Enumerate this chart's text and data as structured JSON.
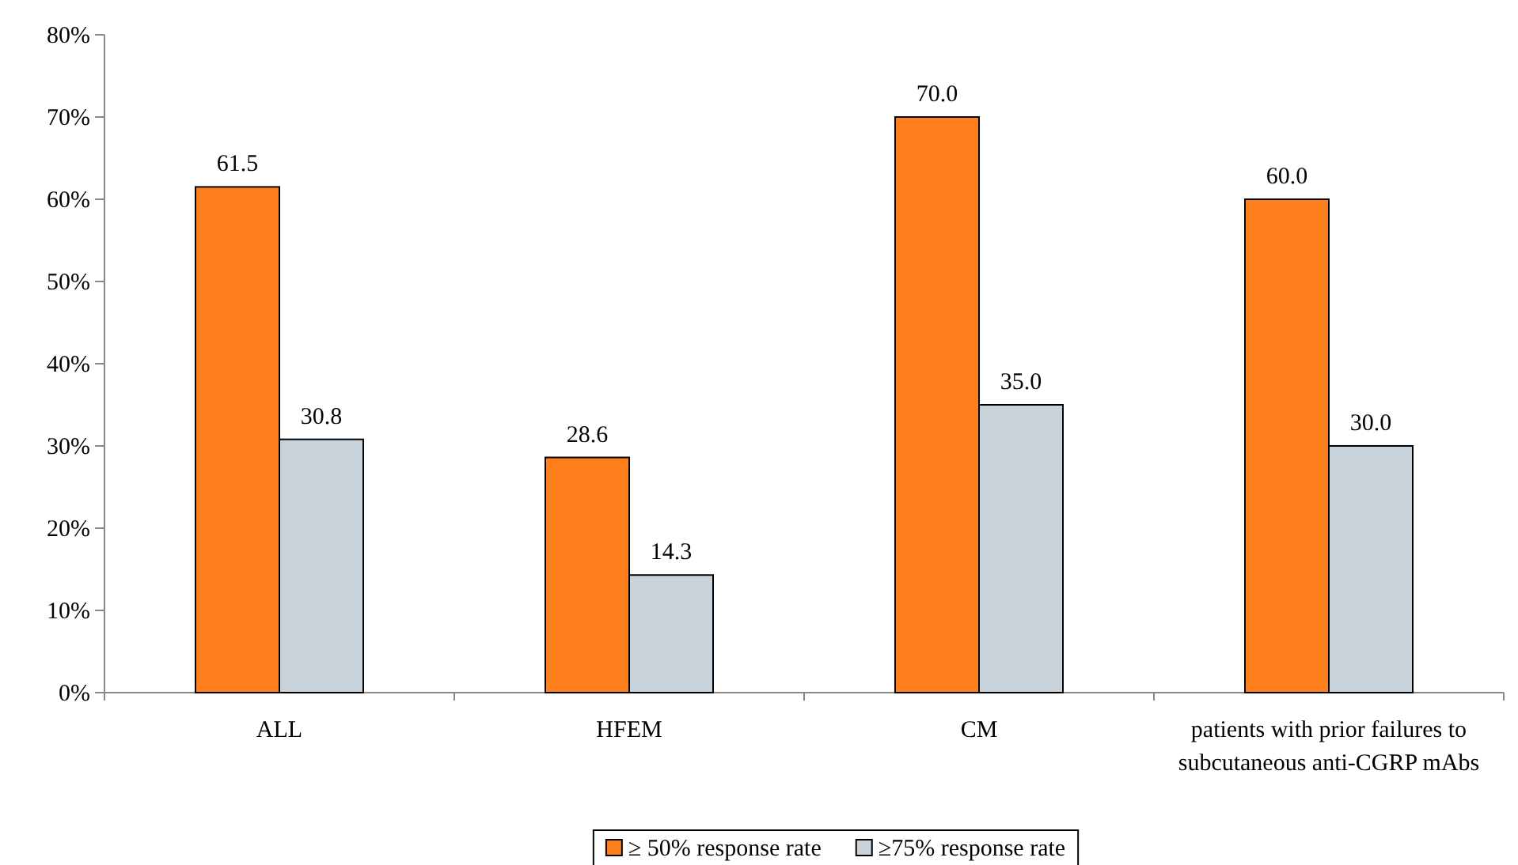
{
  "chart_data": {
    "type": "bar",
    "categories": [
      "ALL",
      "HFEM",
      "CM",
      "patients with prior failures to subcutaneous anti-CGRP mAbs"
    ],
    "series": [
      {
        "name": "≥ 50% response rate",
        "color": "#ff7f1e",
        "values": [
          61.5,
          28.6,
          70.0,
          60.0
        ],
        "value_labels": [
          "61.5",
          "28.6",
          "70.0",
          "60.0"
        ]
      },
      {
        "name": "≥75% response rate",
        "color": "#c9d3dc",
        "values": [
          30.8,
          14.3,
          35.0,
          30.0
        ],
        "value_labels": [
          "30.8",
          "14.3",
          "35.0",
          "30.0"
        ]
      }
    ],
    "ylim": [
      0,
      80
    ],
    "yticks": [
      {
        "value": 0,
        "label": "0%"
      },
      {
        "value": 10,
        "label": "10%"
      },
      {
        "value": 20,
        "label": "20%"
      },
      {
        "value": 30,
        "label": "30%"
      },
      {
        "value": 40,
        "label": "40%"
      },
      {
        "value": 50,
        "label": "50%"
      },
      {
        "value": 60,
        "label": "60%"
      },
      {
        "value": 70,
        "label": "70%"
      },
      {
        "value": 80,
        "label": "80%"
      }
    ],
    "grid": false,
    "legend": "bottom"
  }
}
